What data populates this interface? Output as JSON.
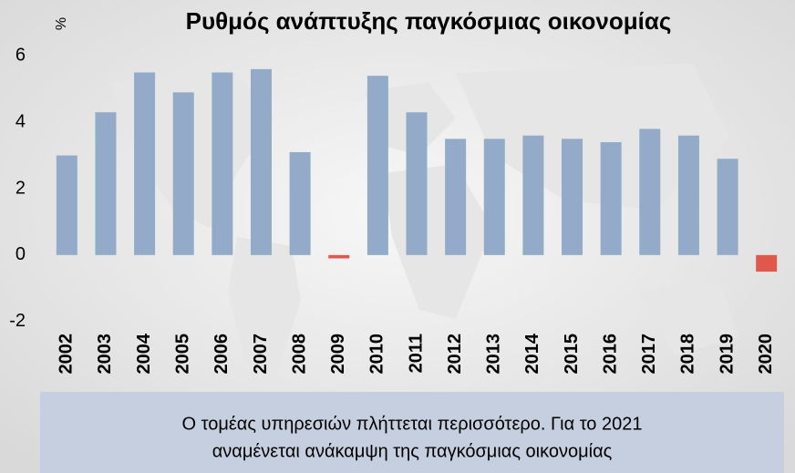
{
  "chart_data": {
    "type": "bar",
    "title": "Ρυθμός ανάπτυξης παγκόσμιας οικονομίας",
    "y_label": "%",
    "categories": [
      "2002",
      "2003",
      "2004",
      "2005",
      "2006",
      "2007",
      "2008",
      "2009",
      "2010",
      "2011",
      "2012",
      "2013",
      "2014",
      "2015",
      "2016",
      "2017",
      "2018",
      "2019",
      "2020"
    ],
    "values": [
      3.0,
      4.3,
      5.5,
      4.9,
      5.5,
      5.6,
      3.1,
      -0.1,
      5.4,
      4.3,
      3.5,
      3.5,
      3.6,
      3.5,
      3.4,
      3.8,
      3.6,
      2.9,
      -0.5
    ],
    "color": "#93abc8",
    "negative_color": "#e0584c",
    "ylim": [
      -2.2,
      6.2
    ],
    "yticks": [
      -2,
      0,
      2,
      4,
      6
    ],
    "grid": false,
    "note": [
      "Ο τομέας υπηρεσιών πλήττεται περισσότερο. Για το 2021",
      "αναμένεται ανάκαμψη της παγκόσμιας οικονομίας"
    ]
  }
}
